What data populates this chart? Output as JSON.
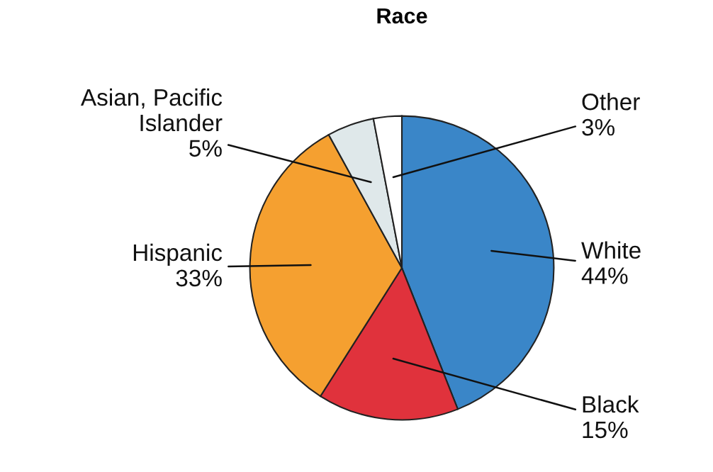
{
  "chart_data": {
    "type": "pie",
    "title": "Race",
    "categories": [
      "White",
      "Black",
      "Hispanic",
      "Asian, Pacific\nIslander",
      "Other"
    ],
    "values": [
      44,
      15,
      33,
      5,
      3
    ],
    "colors": [
      "#3a86c8",
      "#e0323c",
      "#f5a030",
      "#dfe8ea",
      "#ffffff"
    ],
    "value_labels": [
      "44%",
      "15%",
      "33%",
      "5%",
      "3%"
    ]
  }
}
